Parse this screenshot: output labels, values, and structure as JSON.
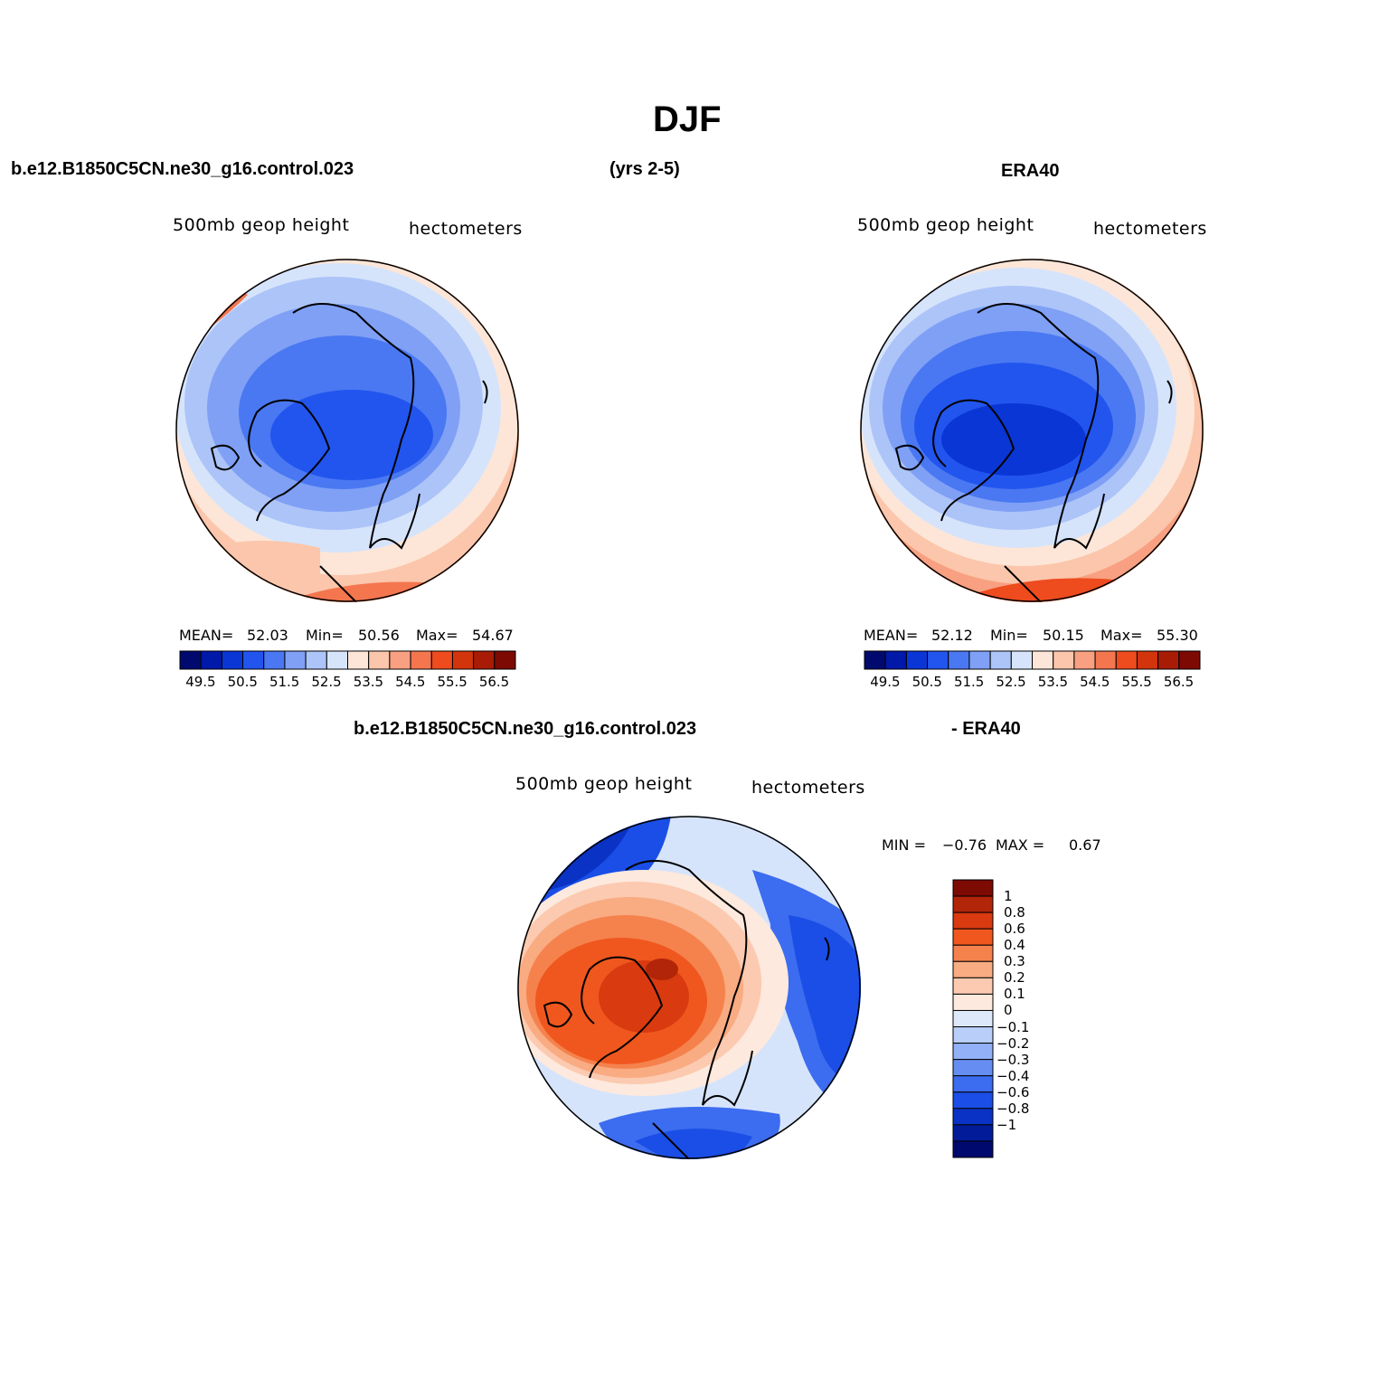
{
  "title": "DJF",
  "header": {
    "case_name": "b.e12.B1850C5CN.ne30_g16.control.023",
    "years": "(yrs 2-5)",
    "obs_name": "ERA40"
  },
  "panel_model": {
    "variable_label": "500mb geop height",
    "units_label": "hectometers",
    "mean_label": "MEAN=",
    "mean_value": "52.03",
    "min_label": "Min=",
    "min_value": "50.56",
    "max_label": "Max=",
    "max_value": "54.67"
  },
  "panel_obs": {
    "variable_label": "500mb geop height",
    "units_label": "hectometers",
    "mean_label": "MEAN=",
    "mean_value": "52.12",
    "min_label": "Min=",
    "min_value": "50.15",
    "max_label": "Max=",
    "max_value": "55.30"
  },
  "panel_diff": {
    "title_left": "b.e12.B1850C5CN.ne30_g16.control.023",
    "title_right": "- ERA40",
    "variable_label": "500mb geop height",
    "units_label": "hectometers",
    "min_label": "MIN =",
    "min_value": "−0.76",
    "max_label": "MAX =",
    "max_value": "0.67"
  },
  "colorbar_abs": {
    "colors": [
      "#000a6e",
      "#0019a8",
      "#0a36d6",
      "#2255ee",
      "#4a78f2",
      "#7fa0f5",
      "#adc4f8",
      "#d6e4fb",
      "#fde6d7",
      "#fbc6ab",
      "#f8a081",
      "#f4764f",
      "#ee4b1e",
      "#d2340c",
      "#a81c06",
      "#7d0a03"
    ],
    "labels": [
      "49.5",
      "50.5",
      "51.5",
      "52.5",
      "53.5",
      "54.5",
      "55.5",
      "56.5"
    ]
  },
  "colorbar_diff": {
    "colors": [
      "#7d0a03",
      "#b22508",
      "#d93a10",
      "#f0571e",
      "#f5824d",
      "#f9ab82",
      "#fbcab0",
      "#fde9dd",
      "#dde9fb",
      "#b9cff9",
      "#92b1f6",
      "#668ef2",
      "#3c6cef",
      "#1a4ee6",
      "#0a32c4",
      "#021c99",
      "#000a6e"
    ],
    "labels": [
      "1",
      "0.8",
      "0.6",
      "0.4",
      "0.3",
      "0.2",
      "0.1",
      "0",
      "−0.1",
      "−0.2",
      "−0.3",
      "−0.4",
      "−0.6",
      "−0.8",
      "−1"
    ]
  },
  "chart_data": [
    {
      "type": "heatmap",
      "projection": "north polar stereographic",
      "title": "500mb geop height",
      "units": "hectometers",
      "source": "b.e12.B1850C5CN.ne30_g16.control.023",
      "statistics": {
        "mean": 52.03,
        "min": 50.56,
        "max": 54.67
      },
      "contour_levels": [
        49.5,
        50.0,
        50.5,
        51.0,
        51.5,
        52.0,
        52.5,
        53.0,
        53.5,
        54.0,
        54.5,
        55.0,
        55.5,
        56.0,
        56.5
      ]
    },
    {
      "type": "heatmap",
      "projection": "north polar stereographic",
      "title": "500mb geop height",
      "units": "hectometers",
      "source": "ERA40",
      "statistics": {
        "mean": 52.12,
        "min": 50.15,
        "max": 55.3
      },
      "contour_levels": [
        49.5,
        50.0,
        50.5,
        51.0,
        51.5,
        52.0,
        52.5,
        53.0,
        53.5,
        54.0,
        54.5,
        55.0,
        55.5,
        56.0,
        56.5
      ]
    },
    {
      "type": "heatmap",
      "projection": "north polar stereographic",
      "title": "500mb geop height difference (model - ERA40)",
      "units": "hectometers",
      "statistics": {
        "min": -0.76,
        "max": 0.67
      },
      "contour_levels": [
        -1,
        -0.8,
        -0.6,
        -0.4,
        -0.3,
        -0.2,
        -0.1,
        0,
        0.1,
        0.2,
        0.3,
        0.4,
        0.6,
        0.8,
        1
      ]
    }
  ]
}
